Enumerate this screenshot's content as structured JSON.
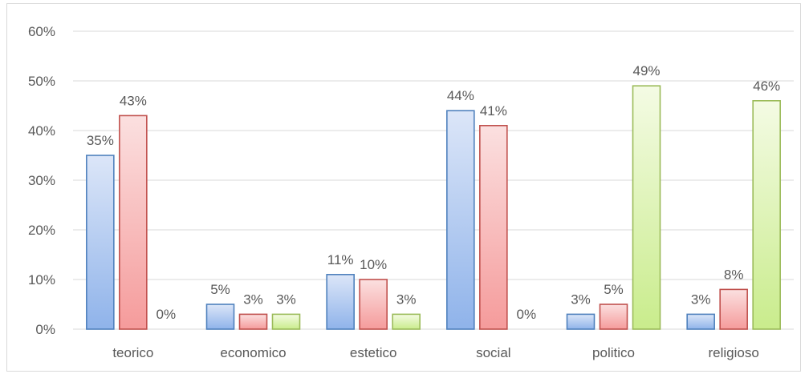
{
  "chart_data": {
    "type": "bar",
    "title": "",
    "xlabel": "",
    "ylabel": "",
    "ylim": [
      0,
      60
    ],
    "y_ticks": [
      "0%",
      "10%",
      "20%",
      "30%",
      "40%",
      "50%",
      "60%"
    ],
    "y_tick_values": [
      0,
      10,
      20,
      30,
      40,
      50,
      60
    ],
    "grid": true,
    "legend": "none",
    "categories": [
      "teorico",
      "economico",
      "estetico",
      "social",
      "politico",
      "religioso"
    ],
    "series": [
      {
        "values": [
          35,
          5,
          11,
          44,
          3,
          3
        ],
        "labels": [
          "35%",
          "5%",
          "11%",
          "44%",
          "3%",
          "3%"
        ],
        "color_fill_top": "#dce6f8",
        "color_fill_bottom": "#8fb3ea",
        "color_stroke": "#4f81bd"
      },
      {
        "values": [
          43,
          3,
          10,
          41,
          5,
          8
        ],
        "labels": [
          "43%",
          "3%",
          "10%",
          "41%",
          "5%",
          "8%"
        ],
        "color_fill_top": "#fbe0e0",
        "color_fill_bottom": "#f59b9b",
        "color_stroke": "#c0504d"
      },
      {
        "values": [
          0,
          3,
          3,
          0,
          49,
          46
        ],
        "labels": [
          "0%",
          "3%",
          "3%",
          "0%",
          "49%",
          "46%"
        ],
        "color_fill_top": "#f4fbe4",
        "color_fill_bottom": "#c9ec8c",
        "color_stroke": "#9bbb59"
      }
    ]
  }
}
